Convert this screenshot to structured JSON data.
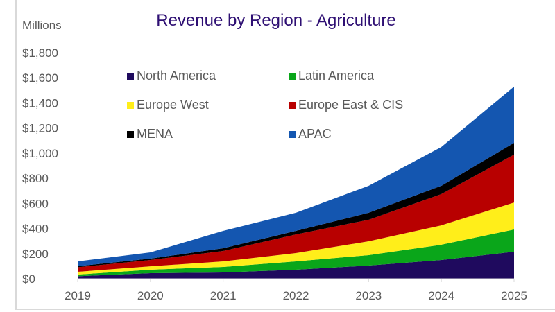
{
  "chart_data": {
    "type": "area",
    "stacked": true,
    "title": "Revenue by Region - Agriculture",
    "ylabel": "Millions",
    "xlabel": "",
    "x": [
      "2019",
      "2020",
      "2021",
      "2022",
      "2023",
      "2024",
      "2025"
    ],
    "ylim": [
      0,
      1800
    ],
    "yticks": [
      0,
      200,
      400,
      600,
      800,
      1000,
      1200,
      1400,
      1600,
      1800
    ],
    "ytick_labels": [
      "$0",
      "$200",
      "$400",
      "$600",
      "$800",
      "$1,000",
      "$1,200",
      "$1,400",
      "$1,600",
      "$1,800"
    ],
    "grid": false,
    "legend_position": "top-left-inside",
    "series": [
      {
        "name": "North America",
        "color": "#1f0a5e",
        "values": [
          20,
          44,
          50,
          72,
          105,
          149,
          215
        ]
      },
      {
        "name": "Latin America",
        "color": "#0aa61a",
        "values": [
          13,
          28,
          44,
          66,
          83,
          122,
          177
        ]
      },
      {
        "name": "Europe West",
        "color": "#ffee1a",
        "values": [
          22,
          27,
          44,
          66,
          110,
          154,
          215
        ]
      },
      {
        "name": "Europe East & CIS",
        "color": "#b80000",
        "values": [
          36,
          50,
          83,
          149,
          171,
          249,
          381
        ]
      },
      {
        "name": "MENA",
        "color": "#000000",
        "values": [
          9,
          11,
          22,
          28,
          56,
          66,
          94
        ]
      },
      {
        "name": "APAC",
        "color": "#1456b0",
        "values": [
          38,
          50,
          138,
          144,
          215,
          309,
          448
        ]
      }
    ],
    "legend_order": [
      0,
      1,
      2,
      3,
      4,
      5
    ]
  }
}
